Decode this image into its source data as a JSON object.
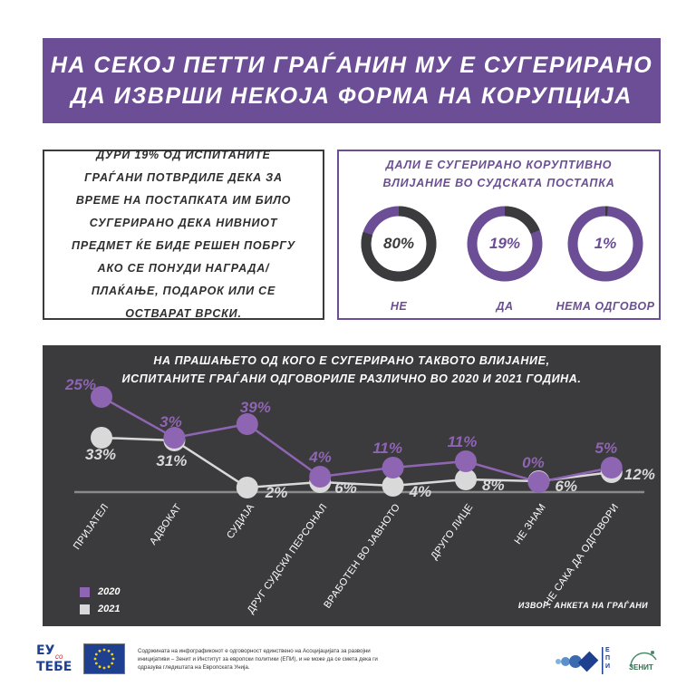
{
  "header": {
    "title_line1": "НА СЕКОЈ ПЕТТИ ГРАЃАНИН МУ Е СУГЕРИРАНО",
    "title_line2": "ДА ИЗВРШИ НЕКОЈА ФОРМА НА КОРУПЦИЈА"
  },
  "summary": {
    "text": "ДУРИ 19% ОД ИСПИТАНИТЕ ГРАЃАНИ ПОТВРДИЛЕ ДЕКА ЗА ВРЕМЕ НА ПОСТАПКАТА ИМ БИЛО СУГЕРИРАНО ДЕКА НИВНИОТ ПРЕДМЕТ ЌЕ БИДЕ РЕШЕН ПОБРГУ АКО СЕ ПОНУДИ НАГРАДА/ПЛАЌАЊЕ, ПОДАРОК ИЛИ СЕ ОСТВАРАТ ВРСКИ."
  },
  "donuts": {
    "title_line1": "ДАЛИ Е СУГЕРИРАНО КОРУПТИВНО",
    "title_line2": "ВЛИЈАНИЕ ВО СУДСКАТА ПОСТАПКА",
    "items": [
      {
        "label": "НЕ",
        "value_text": "80%",
        "value": 80,
        "arc_color": "#3b3a3c",
        "text_color": "#3b3a3c"
      },
      {
        "label": "ДА",
        "value_text": "19%",
        "value": 19,
        "arc_color": "#3b3a3c",
        "text_color": "#6b4e95"
      },
      {
        "label": "НЕМА ОДГОВОР",
        "value_text": "1%",
        "value": 1,
        "arc_color": "#3b3a3c",
        "text_color": "#6b4e95"
      }
    ]
  },
  "chart_data": {
    "type": "line",
    "title_line1": "НА ПРАШАЊЕТО ОД КОГО Е СУГЕРИРАНО ТАКВОТО ВЛИЈАНИЕ,",
    "title_line2": "ИСПИТАНИТЕ ГРАЃАНИ ОДГОВОРИЛЕ РАЗЛИЧНО ВО 2020 И 2021 ГОДИНА.",
    "categories": [
      "ПРИЈАТЕЛ",
      "АДВОКАТ",
      "СУДИЈА",
      "ДРУГ СУДСКИ ПЕРСОНАЛ",
      "ВРАБОТЕН ВО ЈАВНОТО",
      "ДРУГО ЛИЦЕ",
      "НЕ ЗНАМ",
      "НЕ САКА ДА ОДГОВОРИ"
    ],
    "series": [
      {
        "name": "2020",
        "color": "#8e65b3",
        "values": [
          25,
          3,
          39,
          4,
          11,
          11,
          0,
          5
        ],
        "labels": [
          "25%",
          "3%",
          "39%",
          "4%",
          "11%",
          "11%",
          "0%",
          "5%"
        ]
      },
      {
        "name": "2021",
        "color": "#d9d9d9",
        "values": [
          33,
          31,
          2,
          6,
          4,
          8,
          6,
          12
        ],
        "labels": [
          "33%",
          "31%",
          "2%",
          "6%",
          "4%",
          "8%",
          "6%",
          "12%"
        ]
      }
    ],
    "source": "ИЗВОР: АНКЕТА НА ГРАЃАНИ",
    "background": "#3b3a3c"
  },
  "footer": {
    "eu_top": "ЕУ",
    "eu_mid": "со",
    "eu_bottom": "ТЕБЕ",
    "note": "Содржината на инфографиконот е одговорност единствено на Асоцијацијата за развојни иницијативи – Зенит и Институт за европски политики (ЕПИ), и не може да се смета дека ги одразува гледиштата на Европската Унија.",
    "epi_text": "ЕПИ",
    "zenit_text": "ЗЕНИТ"
  },
  "colors": {
    "purple": "#6b4e95",
    "dark": "#3b3a3c",
    "light_purple": "#8e65b3",
    "grey": "#d9d9d9"
  }
}
